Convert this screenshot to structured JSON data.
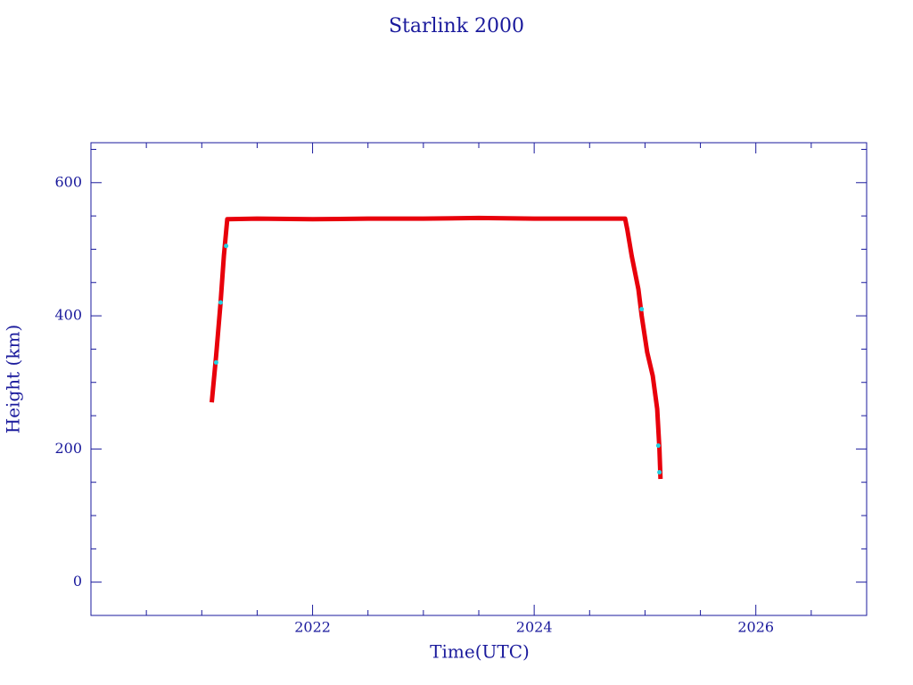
{
  "chart_data": {
    "type": "line",
    "title": "Starlink 2000",
    "xlabel": "Time(UTC)",
    "ylabel": "Height (km)",
    "xlim": [
      2020,
      2027
    ],
    "ylim": [
      -50,
      660
    ],
    "xticks": [
      2022,
      2024,
      2026
    ],
    "yticks": [
      0,
      200,
      400,
      600
    ],
    "xminorticks": [
      2020.5,
      2021,
      2021.5,
      2022.5,
      2023,
      2023.5,
      2024.5,
      2025,
      2025.5,
      2026.5
    ],
    "yminorticks": [
      -50,
      50,
      100,
      150,
      250,
      300,
      350,
      450,
      500,
      550,
      650
    ],
    "series": [
      {
        "color": "#e8000b",
        "marker_only": false,
        "x": [
          2021.09,
          2021.13,
          2021.17,
          2021.2,
          2021.23,
          2021.5,
          2022,
          2022.5,
          2023,
          2023.5,
          2024,
          2024.5,
          2024.82,
          2024.84,
          2024.88,
          2024.94,
          2024.97,
          2025.02,
          2025.07,
          2025.11,
          2025.13,
          2025.14
        ],
        "values": [
          270,
          340,
          420,
          490,
          545,
          546,
          545,
          546,
          546,
          547,
          546,
          546,
          546,
          530,
          490,
          440,
          400,
          345,
          310,
          260,
          200,
          155
        ]
      },
      {
        "color": "#22d0e0",
        "marker_only": true,
        "x": [
          2021.13,
          2021.17,
          2021.22,
          2024.97,
          2025.12,
          2025.13
        ],
        "values": [
          330,
          420,
          505,
          410,
          205,
          165
        ]
      }
    ]
  }
}
